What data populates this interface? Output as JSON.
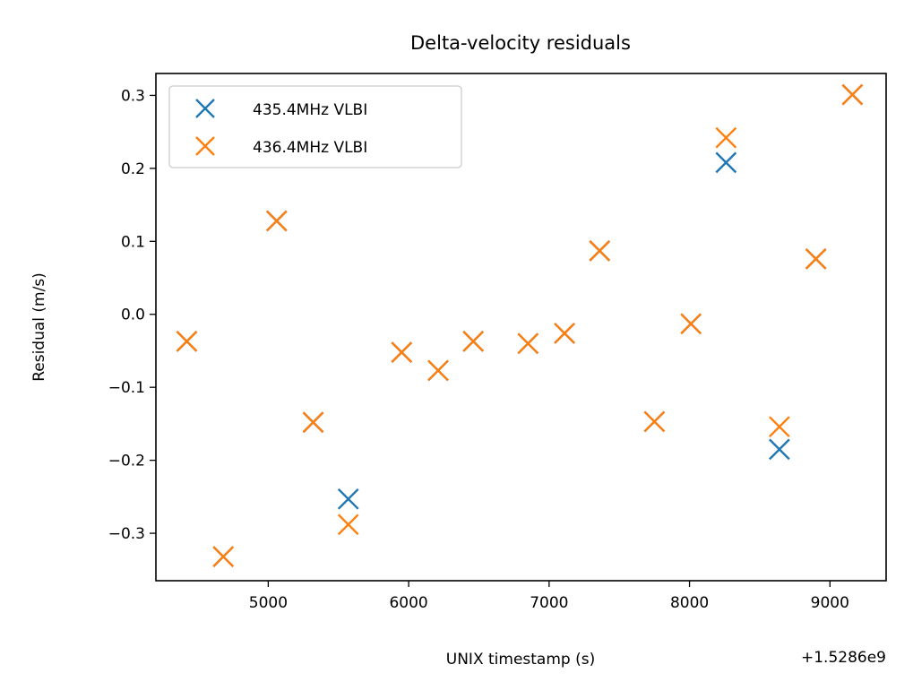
{
  "chart_data": {
    "type": "scatter",
    "title": "Delta-velocity residuals",
    "xlabel": "UNIX timestamp (s)",
    "ylabel": "Residual (m/s)",
    "x_offset_label": "+1.5286e9",
    "xlim": [
      4200,
      9400
    ],
    "ylim": [
      -0.365,
      0.33
    ],
    "xticks": [
      5000,
      6000,
      7000,
      8000,
      9000
    ],
    "yticks": [
      0.3,
      0.2,
      0.1,
      0.0,
      -0.1,
      -0.2,
      -0.3
    ],
    "xtick_labels": [
      "5000",
      "6000",
      "7000",
      "8000",
      "9000"
    ],
    "ytick_labels": [
      "0.3",
      "0.2",
      "0.1",
      "0.0",
      "−0.1",
      "−0.2",
      "−0.3"
    ],
    "legend_position": "upper-left",
    "series": [
      {
        "name": "435.4MHz VLBI",
        "color": "#1f77b4",
        "marker": "x",
        "x": [
          4420,
          4680,
          5060,
          5320,
          5570,
          5950,
          6210,
          6460,
          6850,
          7110,
          7360,
          7750,
          8010,
          8260,
          8640,
          8900,
          9160
        ],
        "y": [
          -0.037,
          -0.332,
          0.128,
          -0.148,
          -0.253,
          -0.052,
          -0.077,
          -0.037,
          -0.04,
          -0.026,
          0.087,
          -0.147,
          -0.013,
          0.208,
          -0.185,
          0.076,
          0.301
        ]
      },
      {
        "name": "436.4MHz VLBI",
        "color": "#ff7f0e",
        "marker": "x",
        "x": [
          4420,
          4680,
          5060,
          5320,
          5570,
          5950,
          6210,
          6460,
          6850,
          7110,
          7360,
          7750,
          8010,
          8260,
          8640,
          8900,
          9160
        ],
        "y": [
          -0.037,
          -0.332,
          0.128,
          -0.148,
          -0.288,
          -0.052,
          -0.077,
          -0.037,
          -0.04,
          -0.026,
          0.087,
          -0.147,
          -0.013,
          0.242,
          -0.154,
          0.076,
          0.301
        ]
      }
    ]
  }
}
